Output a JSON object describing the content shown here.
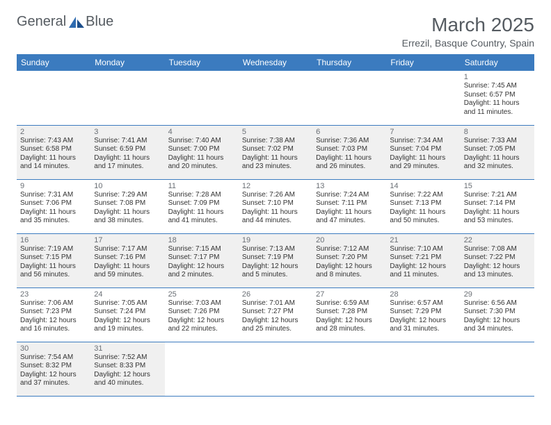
{
  "brand": {
    "name1": "General",
    "name2": "Blue"
  },
  "title": "March 2025",
  "location": "Errezil, Basque Country, Spain",
  "colors": {
    "header_bg": "#3b7bbf",
    "header_fg": "#ffffff",
    "shaded_bg": "#f0f0f0",
    "border": "#3b7bbf",
    "title_color": "#555b61"
  },
  "day_headers": [
    "Sunday",
    "Monday",
    "Tuesday",
    "Wednesday",
    "Thursday",
    "Friday",
    "Saturday"
  ],
  "weeks": [
    [
      {
        "empty": true
      },
      {
        "empty": true
      },
      {
        "empty": true
      },
      {
        "empty": true
      },
      {
        "empty": true
      },
      {
        "empty": true
      },
      {
        "day": "1",
        "sunrise": "Sunrise: 7:45 AM",
        "sunset": "Sunset: 6:57 PM",
        "daylight": "Daylight: 11 hours and 11 minutes.",
        "shaded": false
      }
    ],
    [
      {
        "day": "2",
        "sunrise": "Sunrise: 7:43 AM",
        "sunset": "Sunset: 6:58 PM",
        "daylight": "Daylight: 11 hours and 14 minutes.",
        "shaded": true
      },
      {
        "day": "3",
        "sunrise": "Sunrise: 7:41 AM",
        "sunset": "Sunset: 6:59 PM",
        "daylight": "Daylight: 11 hours and 17 minutes.",
        "shaded": true
      },
      {
        "day": "4",
        "sunrise": "Sunrise: 7:40 AM",
        "sunset": "Sunset: 7:00 PM",
        "daylight": "Daylight: 11 hours and 20 minutes.",
        "shaded": true
      },
      {
        "day": "5",
        "sunrise": "Sunrise: 7:38 AM",
        "sunset": "Sunset: 7:02 PM",
        "daylight": "Daylight: 11 hours and 23 minutes.",
        "shaded": true
      },
      {
        "day": "6",
        "sunrise": "Sunrise: 7:36 AM",
        "sunset": "Sunset: 7:03 PM",
        "daylight": "Daylight: 11 hours and 26 minutes.",
        "shaded": true
      },
      {
        "day": "7",
        "sunrise": "Sunrise: 7:34 AM",
        "sunset": "Sunset: 7:04 PM",
        "daylight": "Daylight: 11 hours and 29 minutes.",
        "shaded": true
      },
      {
        "day": "8",
        "sunrise": "Sunrise: 7:33 AM",
        "sunset": "Sunset: 7:05 PM",
        "daylight": "Daylight: 11 hours and 32 minutes.",
        "shaded": true
      }
    ],
    [
      {
        "day": "9",
        "sunrise": "Sunrise: 7:31 AM",
        "sunset": "Sunset: 7:06 PM",
        "daylight": "Daylight: 11 hours and 35 minutes.",
        "shaded": false
      },
      {
        "day": "10",
        "sunrise": "Sunrise: 7:29 AM",
        "sunset": "Sunset: 7:08 PM",
        "daylight": "Daylight: 11 hours and 38 minutes.",
        "shaded": false
      },
      {
        "day": "11",
        "sunrise": "Sunrise: 7:28 AM",
        "sunset": "Sunset: 7:09 PM",
        "daylight": "Daylight: 11 hours and 41 minutes.",
        "shaded": false
      },
      {
        "day": "12",
        "sunrise": "Sunrise: 7:26 AM",
        "sunset": "Sunset: 7:10 PM",
        "daylight": "Daylight: 11 hours and 44 minutes.",
        "shaded": false
      },
      {
        "day": "13",
        "sunrise": "Sunrise: 7:24 AM",
        "sunset": "Sunset: 7:11 PM",
        "daylight": "Daylight: 11 hours and 47 minutes.",
        "shaded": false
      },
      {
        "day": "14",
        "sunrise": "Sunrise: 7:22 AM",
        "sunset": "Sunset: 7:13 PM",
        "daylight": "Daylight: 11 hours and 50 minutes.",
        "shaded": false
      },
      {
        "day": "15",
        "sunrise": "Sunrise: 7:21 AM",
        "sunset": "Sunset: 7:14 PM",
        "daylight": "Daylight: 11 hours and 53 minutes.",
        "shaded": false
      }
    ],
    [
      {
        "day": "16",
        "sunrise": "Sunrise: 7:19 AM",
        "sunset": "Sunset: 7:15 PM",
        "daylight": "Daylight: 11 hours and 56 minutes.",
        "shaded": true
      },
      {
        "day": "17",
        "sunrise": "Sunrise: 7:17 AM",
        "sunset": "Sunset: 7:16 PM",
        "daylight": "Daylight: 11 hours and 59 minutes.",
        "shaded": true
      },
      {
        "day": "18",
        "sunrise": "Sunrise: 7:15 AM",
        "sunset": "Sunset: 7:17 PM",
        "daylight": "Daylight: 12 hours and 2 minutes.",
        "shaded": true
      },
      {
        "day": "19",
        "sunrise": "Sunrise: 7:13 AM",
        "sunset": "Sunset: 7:19 PM",
        "daylight": "Daylight: 12 hours and 5 minutes.",
        "shaded": true
      },
      {
        "day": "20",
        "sunrise": "Sunrise: 7:12 AM",
        "sunset": "Sunset: 7:20 PM",
        "daylight": "Daylight: 12 hours and 8 minutes.",
        "shaded": true
      },
      {
        "day": "21",
        "sunrise": "Sunrise: 7:10 AM",
        "sunset": "Sunset: 7:21 PM",
        "daylight": "Daylight: 12 hours and 11 minutes.",
        "shaded": true
      },
      {
        "day": "22",
        "sunrise": "Sunrise: 7:08 AM",
        "sunset": "Sunset: 7:22 PM",
        "daylight": "Daylight: 12 hours and 13 minutes.",
        "shaded": true
      }
    ],
    [
      {
        "day": "23",
        "sunrise": "Sunrise: 7:06 AM",
        "sunset": "Sunset: 7:23 PM",
        "daylight": "Daylight: 12 hours and 16 minutes.",
        "shaded": false
      },
      {
        "day": "24",
        "sunrise": "Sunrise: 7:05 AM",
        "sunset": "Sunset: 7:24 PM",
        "daylight": "Daylight: 12 hours and 19 minutes.",
        "shaded": false
      },
      {
        "day": "25",
        "sunrise": "Sunrise: 7:03 AM",
        "sunset": "Sunset: 7:26 PM",
        "daylight": "Daylight: 12 hours and 22 minutes.",
        "shaded": false
      },
      {
        "day": "26",
        "sunrise": "Sunrise: 7:01 AM",
        "sunset": "Sunset: 7:27 PM",
        "daylight": "Daylight: 12 hours and 25 minutes.",
        "shaded": false
      },
      {
        "day": "27",
        "sunrise": "Sunrise: 6:59 AM",
        "sunset": "Sunset: 7:28 PM",
        "daylight": "Daylight: 12 hours and 28 minutes.",
        "shaded": false
      },
      {
        "day": "28",
        "sunrise": "Sunrise: 6:57 AM",
        "sunset": "Sunset: 7:29 PM",
        "daylight": "Daylight: 12 hours and 31 minutes.",
        "shaded": false
      },
      {
        "day": "29",
        "sunrise": "Sunrise: 6:56 AM",
        "sunset": "Sunset: 7:30 PM",
        "daylight": "Daylight: 12 hours and 34 minutes.",
        "shaded": false
      }
    ],
    [
      {
        "day": "30",
        "sunrise": "Sunrise: 7:54 AM",
        "sunset": "Sunset: 8:32 PM",
        "daylight": "Daylight: 12 hours and 37 minutes.",
        "shaded": true
      },
      {
        "day": "31",
        "sunrise": "Sunrise: 7:52 AM",
        "sunset": "Sunset: 8:33 PM",
        "daylight": "Daylight: 12 hours and 40 minutes.",
        "shaded": true
      },
      {
        "empty": true
      },
      {
        "empty": true
      },
      {
        "empty": true
      },
      {
        "empty": true
      },
      {
        "empty": true
      }
    ]
  ]
}
